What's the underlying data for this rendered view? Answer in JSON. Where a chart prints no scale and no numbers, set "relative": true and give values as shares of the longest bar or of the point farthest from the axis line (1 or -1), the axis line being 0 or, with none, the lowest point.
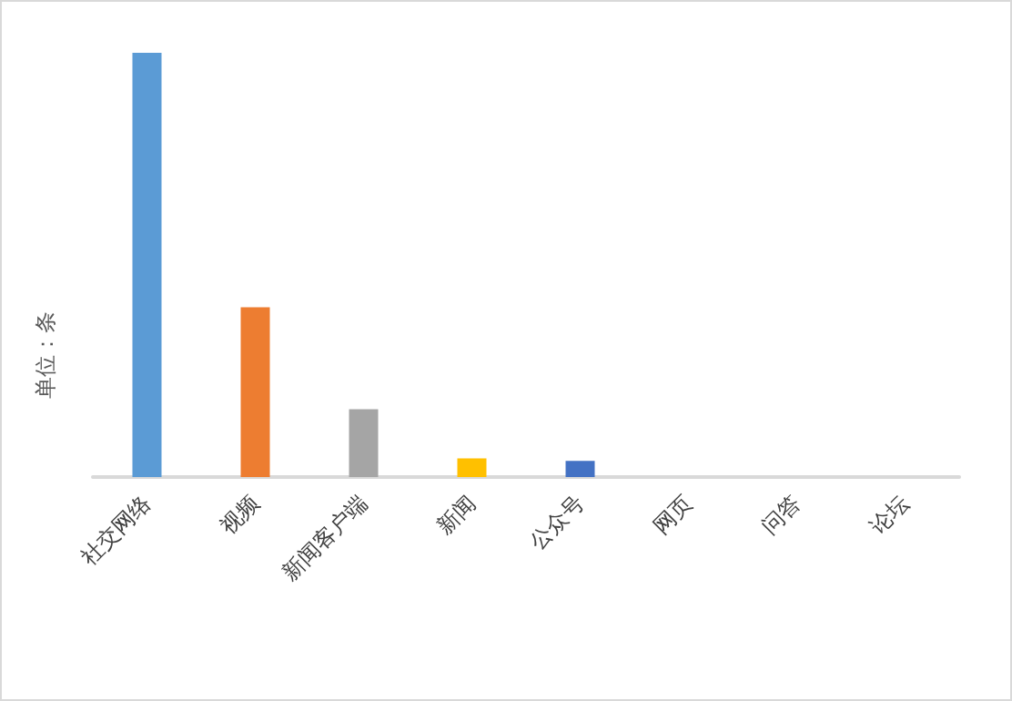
{
  "chart_data": {
    "type": "bar",
    "ylabel": "单位：条",
    "relative": true,
    "categories": [
      "社交网络",
      "视频",
      "新闻客户端",
      "新闻",
      "公众号",
      "网页",
      "问答",
      "论坛"
    ],
    "values": [
      1,
      0.4,
      0.16,
      0.044,
      0.038,
      0,
      0,
      0
    ],
    "colors": [
      "#5b9bd5",
      "#ed7d31",
      "#a5a5a5",
      "#ffc000",
      "#4472c4",
      "#70ad47",
      "#255e91",
      "#9e480e"
    ]
  }
}
